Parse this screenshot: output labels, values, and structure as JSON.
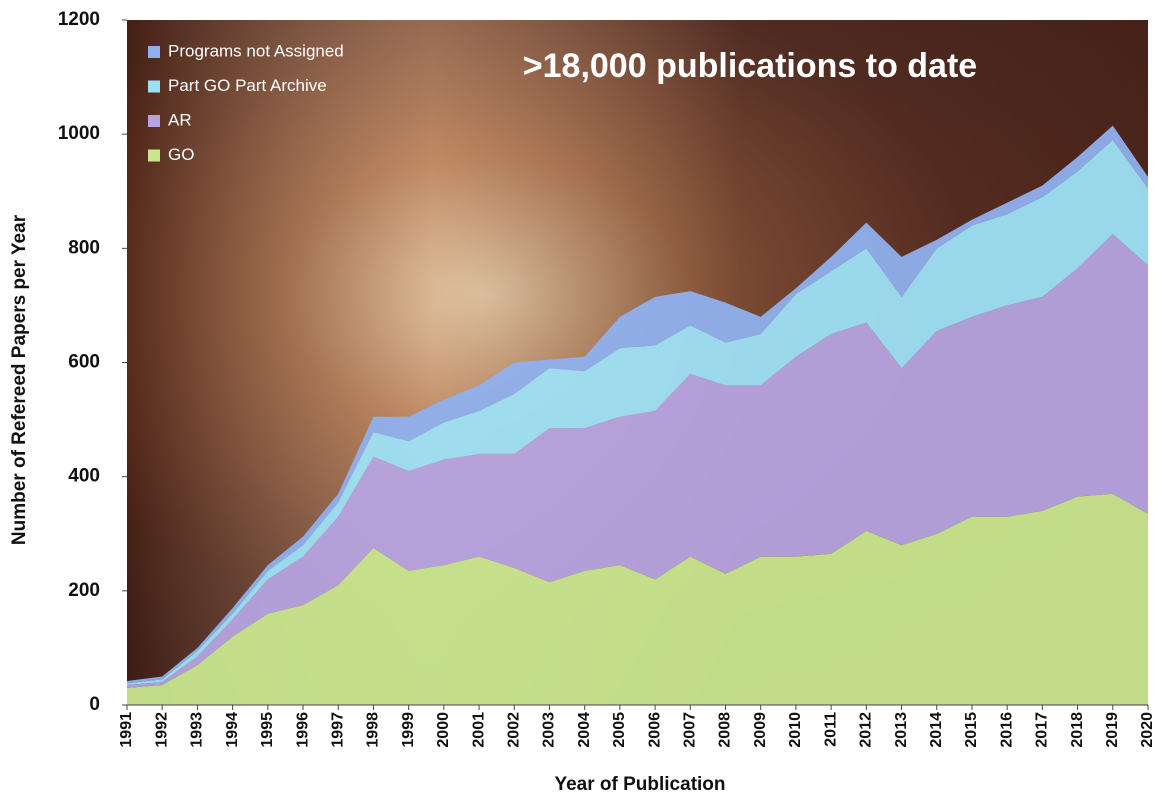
{
  "chart_data": {
    "type": "stacked-area",
    "annotation": ">18,000 publications to date",
    "x_label": "Year of Publication",
    "y_label": "Number of Refereed Papers per Year",
    "x": [
      1991,
      1992,
      1993,
      1994,
      1995,
      1996,
      1997,
      1998,
      1999,
      2000,
      2001,
      2002,
      2003,
      2004,
      2005,
      2006,
      2007,
      2008,
      2009,
      2010,
      2011,
      2012,
      2013,
      2014,
      2015,
      2016,
      2017,
      2018,
      2019,
      2020
    ],
    "xlim": [
      1991,
      2020
    ],
    "ylim": [
      0,
      1200
    ],
    "yticks": [
      0,
      200,
      400,
      600,
      800,
      1000,
      1200
    ],
    "legend": "upper left",
    "series": [
      {
        "name": "Programs not Assigned",
        "color": "#8fb0ee",
        "values": [
          4,
          5,
          5,
          10,
          10,
          15,
          15,
          27,
          43,
          40,
          45,
          55,
          15,
          25,
          55,
          85,
          60,
          70,
          30,
          10,
          25,
          45,
          70,
          15,
          10,
          20,
          20,
          25,
          25,
          20
        ]
      },
      {
        "name": "Part GO Part Archive",
        "color": "#9de0f5",
        "values": [
          3,
          5,
          10,
          10,
          15,
          20,
          25,
          43,
          52,
          65,
          75,
          105,
          105,
          100,
          120,
          115,
          85,
          75,
          90,
          110,
          110,
          130,
          125,
          145,
          160,
          160,
          175,
          170,
          165,
          135
        ]
      },
      {
        "name": "AR",
        "color": "#b6a3e0",
        "values": [
          5,
          5,
          15,
          30,
          60,
          85,
          120,
          160,
          175,
          185,
          180,
          200,
          270,
          250,
          260,
          295,
          320,
          330,
          300,
          350,
          385,
          365,
          310,
          355,
          350,
          370,
          375,
          400,
          455,
          435
        ]
      },
      {
        "name": "GO",
        "color": "#c8e68e",
        "values": [
          30,
          35,
          70,
          120,
          160,
          175,
          210,
          275,
          235,
          245,
          260,
          240,
          215,
          235,
          245,
          220,
          260,
          230,
          260,
          260,
          265,
          305,
          280,
          300,
          330,
          330,
          340,
          365,
          370,
          335
        ]
      }
    ]
  }
}
